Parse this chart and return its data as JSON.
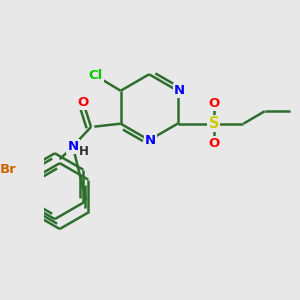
{
  "background_color": "#e8e8e8",
  "bond_color": "#2d6e2d",
  "atom_colors": {
    "Cl": "#00cc00",
    "N": "#0000ff",
    "O": "#ff0000",
    "S": "#cccc00",
    "Br": "#cc6600",
    "H": "#2d2d2d",
    "C": "#2d6e2d"
  },
  "line_width": 1.8,
  "font_size": 9.5
}
